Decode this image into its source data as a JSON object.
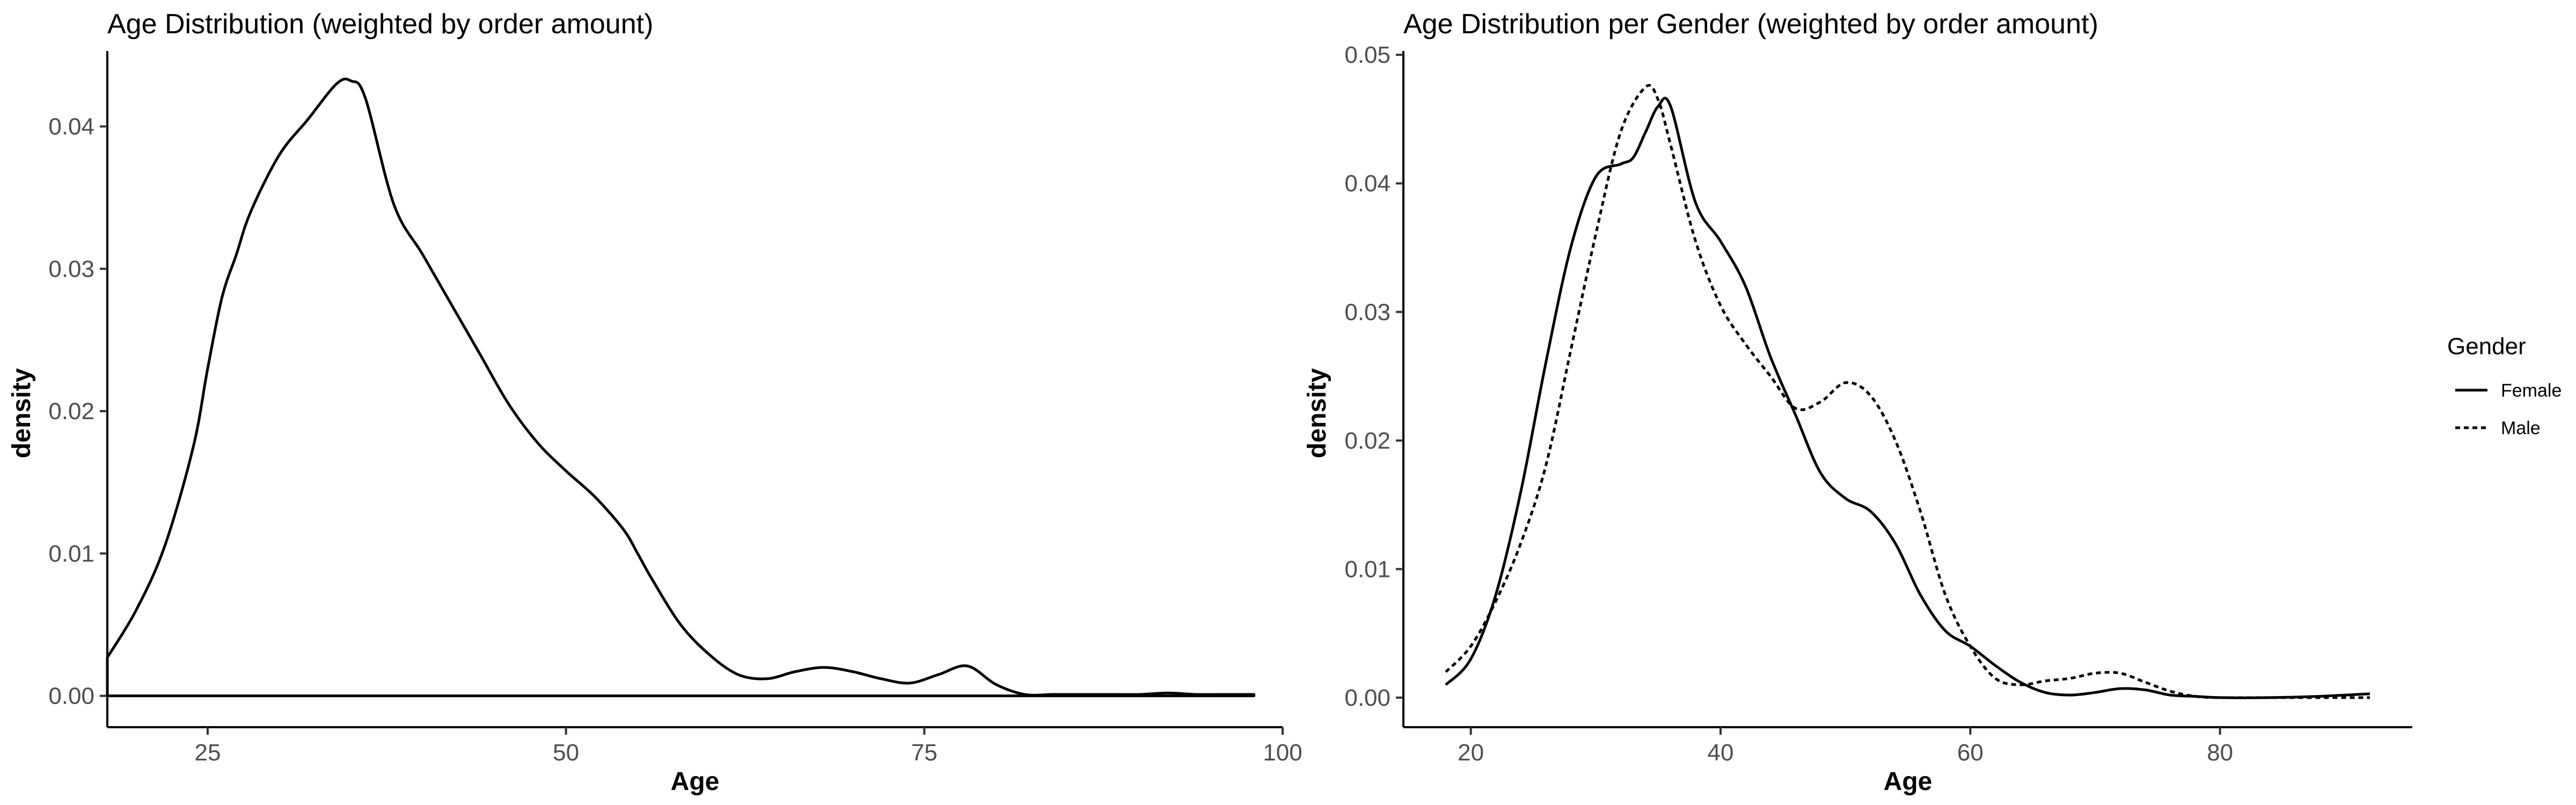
{
  "chart_data": [
    {
      "type": "area",
      "title": "Age Distribution (weighted by order amount)",
      "xlabel": "Age",
      "ylabel": "density",
      "xlim": [
        18,
        98
      ],
      "ylim": [
        0,
        0.045
      ],
      "xticks": [
        25,
        50,
        75,
        100
      ],
      "yticks": [
        0,
        0.01,
        0.02,
        0.03,
        0.04
      ],
      "ytick_labels": [
        "0.00",
        "0.01",
        "0.02",
        "0.03",
        "0.04"
      ],
      "grid": false,
      "series": [
        {
          "x": [
            18,
            20,
            22,
            24,
            25,
            26,
            27,
            28,
            30,
            32,
            34,
            35,
            36,
            38,
            40,
            42,
            44,
            46,
            48,
            50,
            52,
            54,
            55,
            56,
            58,
            60,
            62,
            64,
            66,
            68,
            70,
            72,
            74,
            76,
            78,
            80,
            82,
            84,
            86,
            88,
            90,
            92,
            94,
            96,
            98
          ],
          "y": [
            0.0027,
            0.006,
            0.0105,
            0.0175,
            0.023,
            0.028,
            0.031,
            0.034,
            0.038,
            0.0405,
            0.043,
            0.0432,
            0.042,
            0.0345,
            0.031,
            0.0275,
            0.024,
            0.0205,
            0.0178,
            0.0158,
            0.014,
            0.0117,
            0.01,
            0.0082,
            0.005,
            0.0029,
            0.0015,
            0.0012,
            0.0017,
            0.002,
            0.0017,
            0.0012,
            0.0009,
            0.0015,
            0.0021,
            0.0008,
            0.0001,
            0.0001,
            0.0001,
            0.0001,
            0.0001,
            0.0002,
            0.0001,
            0.0001,
            0.0001
          ]
        }
      ]
    },
    {
      "type": "line",
      "title": "Age Distribution per Gender (weighted by order amount)",
      "xlabel": "Age",
      "ylabel": "density",
      "xlim": [
        18,
        92
      ],
      "ylim": [
        0,
        0.05
      ],
      "xticks": [
        20,
        40,
        60,
        80
      ],
      "yticks": [
        0,
        0.01,
        0.02,
        0.03,
        0.04,
        0.05
      ],
      "ytick_labels": [
        "0.00",
        "0.01",
        "0.02",
        "0.03",
        "0.04",
        "0.05"
      ],
      "grid": false,
      "legend": {
        "title": "Gender",
        "position": "right"
      },
      "series": [
        {
          "name": "Female",
          "dash": "solid",
          "x": [
            18,
            20,
            22,
            24,
            26,
            28,
            30,
            32,
            33,
            34,
            35,
            36,
            38,
            40,
            42,
            44,
            46,
            48,
            50,
            52,
            54,
            56,
            58,
            60,
            62,
            64,
            66,
            68,
            70,
            72,
            74,
            76,
            78,
            80,
            84,
            88,
            92
          ],
          "y": [
            0.001,
            0.003,
            0.008,
            0.016,
            0.026,
            0.035,
            0.0405,
            0.0415,
            0.042,
            0.044,
            0.046,
            0.046,
            0.0385,
            0.0355,
            0.032,
            0.0265,
            0.022,
            0.0175,
            0.0155,
            0.0145,
            0.012,
            0.008,
            0.0052,
            0.004,
            0.0025,
            0.0012,
            0.0004,
            0.0002,
            0.0004,
            0.0007,
            0.0006,
            0.0002,
            0.0001,
            0.0,
            0.0,
            0.0001,
            0.0003
          ]
        },
        {
          "name": "Male",
          "dash": "dotted",
          "x": [
            18,
            20,
            22,
            24,
            26,
            28,
            30,
            32,
            34,
            35,
            36,
            38,
            40,
            42,
            44,
            46,
            48,
            50,
            52,
            54,
            56,
            58,
            60,
            62,
            64,
            66,
            68,
            70,
            72,
            74,
            76,
            78,
            80,
            84,
            88,
            92
          ],
          "y": [
            0.002,
            0.004,
            0.0075,
            0.012,
            0.018,
            0.027,
            0.036,
            0.044,
            0.0475,
            0.0465,
            0.043,
            0.0355,
            0.0305,
            0.0275,
            0.025,
            0.0225,
            0.023,
            0.0245,
            0.0235,
            0.02,
            0.0145,
            0.008,
            0.004,
            0.0015,
            0.001,
            0.0013,
            0.0015,
            0.0019,
            0.0019,
            0.0012,
            0.0005,
            0.0001,
            0.0,
            0.0,
            0.0,
            0.0
          ]
        }
      ]
    }
  ]
}
